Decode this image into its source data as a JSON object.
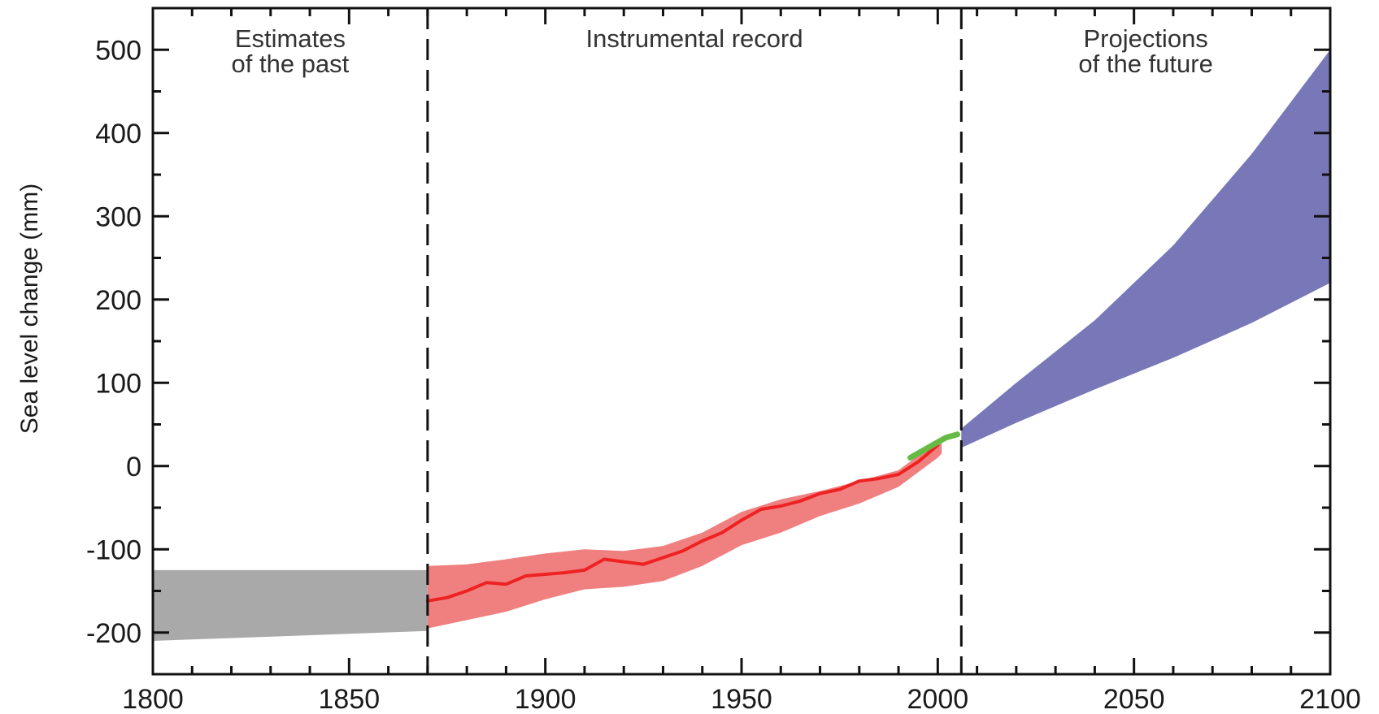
{
  "chart_data": {
    "type": "area",
    "title": "",
    "xlabel": "",
    "ylabel": "Sea level change (mm)",
    "xlim": [
      1800,
      2100
    ],
    "ylim": [
      -250,
      550
    ],
    "x_ticks": [
      1800,
      1850,
      1900,
      1950,
      2000,
      2050,
      2100
    ],
    "y_ticks": [
      -200,
      -100,
      0,
      100,
      200,
      300,
      400,
      500
    ],
    "grid": false,
    "period_labels": [
      {
        "lines": [
          "Estimates",
          "of the past"
        ]
      },
      {
        "lines": [
          "Instrumental record"
        ]
      },
      {
        "lines": [
          "Projections",
          "of the future"
        ]
      }
    ],
    "dividers": [
      1870,
      2006
    ],
    "series": [
      {
        "id": "past",
        "kind": "band",
        "color": "#a9a9a9",
        "x": [
          1800,
          1870
        ],
        "upper": [
          -125,
          -125
        ],
        "lower": [
          -210,
          -198
        ]
      },
      {
        "id": "tide_gauge_band",
        "kind": "band",
        "color": "#f08080",
        "x": [
          1870,
          1880,
          1890,
          1900,
          1910,
          1920,
          1930,
          1940,
          1950,
          1960,
          1970,
          1980,
          1990,
          2000,
          2001
        ],
        "upper": [
          -120,
          -118,
          -112,
          -105,
          -100,
          -102,
          -96,
          -80,
          -55,
          -40,
          -30,
          -18,
          -5,
          30,
          35
        ],
        "lower": [
          -195,
          -185,
          -175,
          -160,
          -148,
          -145,
          -138,
          -120,
          -95,
          -80,
          -60,
          -45,
          -25,
          10,
          15
        ]
      },
      {
        "id": "tide_gauge",
        "kind": "line",
        "color": "#ee2222",
        "x": [
          1870,
          1875,
          1880,
          1885,
          1890,
          1895,
          1900,
          1905,
          1910,
          1915,
          1920,
          1925,
          1930,
          1935,
          1940,
          1945,
          1950,
          1955,
          1960,
          1965,
          1970,
          1975,
          1980,
          1985,
          1990,
          1995,
          2000
        ],
        "y": [
          -162,
          -158,
          -150,
          -140,
          -142,
          -132,
          -130,
          -128,
          -125,
          -112,
          -115,
          -118,
          -110,
          -102,
          -90,
          -80,
          -65,
          -52,
          -48,
          -42,
          -33,
          -28,
          -18,
          -15,
          -10,
          5,
          25
        ]
      },
      {
        "id": "satellite",
        "kind": "line",
        "color": "#66bb44",
        "x": [
          1993,
          1996,
          1999,
          2002,
          2005
        ],
        "y": [
          10,
          18,
          26,
          34,
          38
        ]
      },
      {
        "id": "projection",
        "kind": "band",
        "color": "#7878b8",
        "x": [
          2006,
          2020,
          2040,
          2060,
          2080,
          2100
        ],
        "upper": [
          45,
          100,
          175,
          265,
          375,
          500
        ],
        "lower": [
          22,
          52,
          92,
          130,
          172,
          220
        ]
      }
    ]
  }
}
